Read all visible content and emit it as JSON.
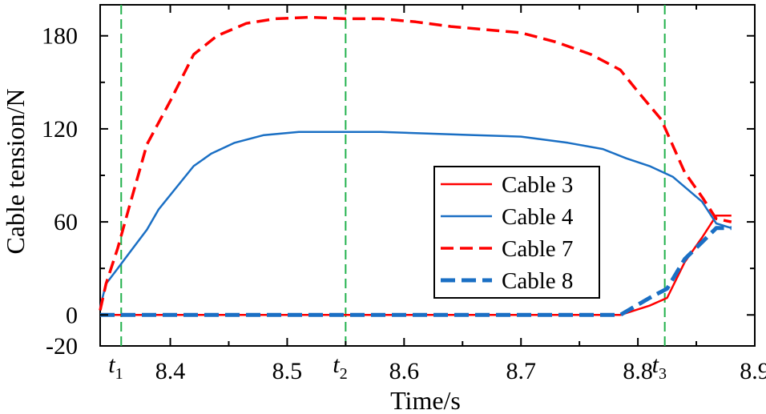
{
  "chart_data": {
    "type": "line",
    "xlabel": "Time/s",
    "ylabel": "Cable tension/N",
    "xlim": [
      8.34,
      8.9
    ],
    "ylim": [
      -20,
      200
    ],
    "x_ticks": [
      8.4,
      8.5,
      8.6,
      8.7,
      8.8,
      8.9
    ],
    "y_ticks": [
      -20,
      0,
      60,
      120,
      180
    ],
    "grid": false,
    "legend": "center-right",
    "markers": [
      {
        "label": "t",
        "sub": "1",
        "x": 8.358
      },
      {
        "label": "t",
        "sub": "2",
        "x": 8.55
      },
      {
        "label": "t",
        "sub": "3",
        "x": 8.823
      }
    ],
    "series": [
      {
        "name": "Cable 3",
        "color": "#ff0000",
        "style": "solid",
        "x": [
          8.34,
          8.4,
          8.5,
          8.6,
          8.7,
          8.785,
          8.81,
          8.825,
          8.84,
          8.855,
          8.867,
          8.875,
          8.88
        ],
        "y": [
          0,
          0,
          0,
          0,
          0,
          0,
          6,
          11,
          34,
          50,
          64,
          64,
          64
        ]
      },
      {
        "name": "Cable 4",
        "color": "#1a6fc4",
        "style": "solid",
        "x": [
          8.34,
          8.345,
          8.355,
          8.365,
          8.38,
          8.39,
          8.405,
          8.42,
          8.435,
          8.455,
          8.48,
          8.51,
          8.54,
          8.58,
          8.62,
          8.66,
          8.7,
          8.74,
          8.77,
          8.79,
          8.81,
          8.83,
          8.855,
          8.867,
          8.88
        ],
        "y": [
          5,
          20,
          30,
          40,
          55,
          68,
          82,
          96,
          104,
          111,
          116,
          118,
          118,
          118,
          117,
          116,
          115,
          111,
          107,
          101,
          96,
          89,
          73,
          59,
          56
        ]
      },
      {
        "name": "Cable 7",
        "color": "#ff0000",
        "style": "dashed",
        "x": [
          8.34,
          8.345,
          8.355,
          8.365,
          8.38,
          8.4,
          8.42,
          8.44,
          8.465,
          8.49,
          8.52,
          8.55,
          8.58,
          8.61,
          8.64,
          8.67,
          8.7,
          8.73,
          8.76,
          8.785,
          8.8,
          8.82,
          8.84,
          8.855,
          8.867,
          8.88
        ],
        "y": [
          3,
          20,
          43,
          70,
          110,
          138,
          168,
          180,
          188,
          191,
          192,
          191,
          191,
          189,
          186,
          184,
          182,
          176,
          168,
          158,
          144,
          126,
          92,
          76,
          62,
          60
        ]
      },
      {
        "name": "Cable 8",
        "color": "#1a6fc4",
        "style": "thick-dashed",
        "x": [
          8.34,
          8.4,
          8.5,
          8.6,
          8.7,
          8.785,
          8.81,
          8.825,
          8.84,
          8.855,
          8.867,
          8.875,
          8.88
        ],
        "y": [
          0,
          0,
          0,
          0,
          0,
          0,
          11,
          17,
          36,
          47,
          56,
          56,
          56
        ]
      }
    ]
  }
}
